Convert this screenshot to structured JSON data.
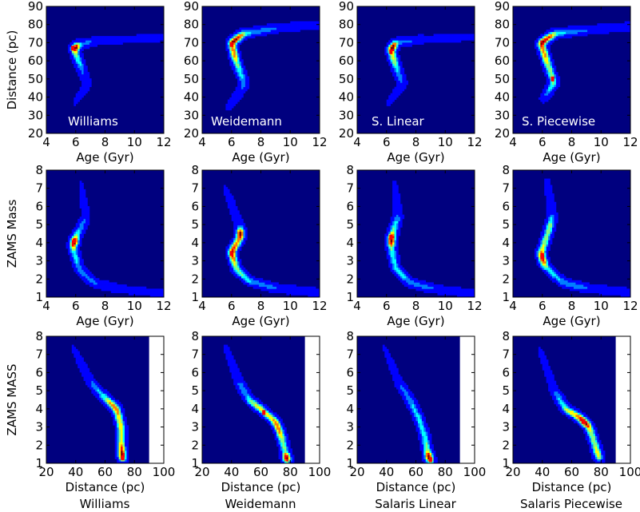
{
  "colors": {
    "background": "#00007f",
    "colormap": [
      "#00007f",
      "#0000ff",
      "#007fff",
      "#00ffff",
      "#7fff7f",
      "#ffff00",
      "#ff7f00",
      "#ff0000",
      "#7f0000"
    ]
  },
  "columns": [
    {
      "inner_label": "Williams",
      "caption": "Williams"
    },
    {
      "inner_label": "Weidemann",
      "caption": "Weidemann"
    },
    {
      "inner_label": "S. Linear",
      "caption": "Salaris Linear"
    },
    {
      "inner_label": "S. Piecewise",
      "caption": "Salaris Piecewise"
    }
  ],
  "rows": [
    {
      "ylabel": "Distance (pc)",
      "xlabel": "Age (Gyr)",
      "xticks": [
        "4",
        "6",
        "8",
        "10",
        "12"
      ],
      "yticks": [
        "20",
        "30",
        "40",
        "50",
        "60",
        "70",
        "80",
        "90"
      ]
    },
    {
      "ylabel": "ZAMS Mass",
      "xlabel": "Age (Gyr)",
      "xticks": [
        "4",
        "6",
        "8",
        "10",
        "12"
      ],
      "yticks": [
        "1",
        "2",
        "3",
        "4",
        "5",
        "6",
        "7",
        "8"
      ]
    },
    {
      "ylabel": "ZAMS MASS",
      "xlabel": "Distance (pc)",
      "xticks": [
        "20",
        "40",
        "60",
        "80",
        "100"
      ],
      "yticks": [
        "1",
        "2",
        "3",
        "4",
        "5",
        "6",
        "7",
        "8"
      ]
    }
  ],
  "chart_data": [
    {
      "type": "heatmap",
      "row": 0,
      "column": 0,
      "title": "Williams",
      "xlabel": "Age (Gyr)",
      "ylabel": "Distance (pc)",
      "xlim": [
        4,
        12
      ],
      "ylim": [
        20,
        90
      ],
      "density_ridge": [
        {
          "x": 5.8,
          "y": 35,
          "w": 0.05
        },
        {
          "x": 6.8,
          "y": 47,
          "w": 0.3
        },
        {
          "x": 6.3,
          "y": 58,
          "w": 0.7
        },
        {
          "x": 5.9,
          "y": 66,
          "w": 1.0
        },
        {
          "x": 6.1,
          "y": 69,
          "w": 0.7
        },
        {
          "x": 7.5,
          "y": 71,
          "w": 0.35
        },
        {
          "x": 10,
          "y": 72,
          "w": 0.3
        },
        {
          "x": 12,
          "y": 73,
          "w": 0.25
        }
      ],
      "peak": {
        "x": 5.8,
        "y": 67
      }
    },
    {
      "type": "heatmap",
      "row": 0,
      "column": 1,
      "title": "Weidemann",
      "xlabel": "Age (Gyr)",
      "ylabel": "Distance (pc)",
      "xlim": [
        4,
        12
      ],
      "ylim": [
        20,
        90
      ],
      "density_ridge": [
        {
          "x": 5.7,
          "y": 33,
          "w": 0.05
        },
        {
          "x": 6.9,
          "y": 47,
          "w": 0.3
        },
        {
          "x": 6.3,
          "y": 60,
          "w": 0.6
        },
        {
          "x": 6.0,
          "y": 70,
          "w": 0.7
        },
        {
          "x": 6.8,
          "y": 75,
          "w": 0.5
        },
        {
          "x": 9,
          "y": 78,
          "w": 0.3
        },
        {
          "x": 12,
          "y": 80,
          "w": 0.25
        }
      ],
      "peak": {
        "x": 6.0,
        "y": 69
      }
    },
    {
      "type": "heatmap",
      "row": 0,
      "column": 2,
      "title": "S. Linear",
      "xlabel": "Age (Gyr)",
      "ylabel": "Distance (pc)",
      "xlim": [
        4,
        12
      ],
      "ylim": [
        20,
        90
      ],
      "density_ridge": [
        {
          "x": 6.0,
          "y": 35,
          "w": 0.05
        },
        {
          "x": 7.1,
          "y": 47,
          "w": 0.3
        },
        {
          "x": 6.6,
          "y": 58,
          "w": 0.7
        },
        {
          "x": 6.3,
          "y": 66,
          "w": 0.9
        },
        {
          "x": 6.6,
          "y": 70,
          "w": 0.6
        },
        {
          "x": 8.5,
          "y": 72,
          "w": 0.3
        },
        {
          "x": 12,
          "y": 73,
          "w": 0.25
        }
      ],
      "peak": {
        "x": 6.3,
        "y": 65
      }
    },
    {
      "type": "heatmap",
      "row": 0,
      "column": 3,
      "title": "S. Piecewise",
      "xlabel": "Age (Gyr)",
      "ylabel": "Distance (pc)",
      "xlim": [
        4,
        12
      ],
      "ylim": [
        20,
        90
      ],
      "density_ridge": [
        {
          "x": 6.0,
          "y": 38,
          "w": 0.05
        },
        {
          "x": 6.8,
          "y": 48,
          "w": 0.5
        },
        {
          "x": 6.3,
          "y": 60,
          "w": 0.6
        },
        {
          "x": 5.9,
          "y": 70,
          "w": 0.7
        },
        {
          "x": 6.8,
          "y": 75,
          "w": 0.5
        },
        {
          "x": 9,
          "y": 77,
          "w": 0.3
        },
        {
          "x": 12,
          "y": 79,
          "w": 0.25
        }
      ],
      "peak": {
        "x": 6.7,
        "y": 50
      }
    },
    {
      "type": "heatmap",
      "row": 1,
      "column": 0,
      "xlabel": "Age (Gyr)",
      "ylabel": "ZAMS Mass",
      "xlim": [
        4,
        12
      ],
      "ylim": [
        1,
        8
      ],
      "density_ridge": [
        {
          "x": 6.3,
          "y": 7.6,
          "w": 0.05
        },
        {
          "x": 6.7,
          "y": 5.4,
          "w": 0.3
        },
        {
          "x": 6.0,
          "y": 4.3,
          "w": 0.8
        },
        {
          "x": 5.8,
          "y": 3.8,
          "w": 0.9
        },
        {
          "x": 6.2,
          "y": 2.6,
          "w": 0.5
        },
        {
          "x": 7.2,
          "y": 1.8,
          "w": 0.4
        },
        {
          "x": 9.0,
          "y": 1.45,
          "w": 0.35
        },
        {
          "x": 12,
          "y": 1.2,
          "w": 0.3
        }
      ],
      "peak": {
        "x": 5.9,
        "y": 4.1
      }
    },
    {
      "type": "heatmap",
      "row": 1,
      "column": 1,
      "xlabel": "Age (Gyr)",
      "ylabel": "ZAMS Mass",
      "xlim": [
        4,
        12
      ],
      "ylim": [
        1,
        8
      ],
      "density_ridge": [
        {
          "x": 5.5,
          "y": 7.2,
          "w": 0.05
        },
        {
          "x": 6.6,
          "y": 4.8,
          "w": 0.4
        },
        {
          "x": 6.6,
          "y": 4.3,
          "w": 0.6
        },
        {
          "x": 6.0,
          "y": 3.5,
          "w": 0.9
        },
        {
          "x": 6.3,
          "y": 2.6,
          "w": 0.5
        },
        {
          "x": 7.2,
          "y": 1.9,
          "w": 0.4
        },
        {
          "x": 9.0,
          "y": 1.5,
          "w": 0.35
        },
        {
          "x": 12,
          "y": 1.25,
          "w": 0.3
        }
      ],
      "peak": {
        "x": 6.0,
        "y": 3.4
      }
    },
    {
      "type": "heatmap",
      "row": 1,
      "column": 2,
      "xlabel": "Age (Gyr)",
      "ylabel": "ZAMS Mass",
      "xlim": [
        4,
        12
      ],
      "ylim": [
        1,
        8
      ],
      "density_ridge": [
        {
          "x": 6.5,
          "y": 7.5,
          "w": 0.05
        },
        {
          "x": 6.8,
          "y": 5.5,
          "w": 0.3
        },
        {
          "x": 6.4,
          "y": 4.5,
          "w": 0.7
        },
        {
          "x": 6.3,
          "y": 3.9,
          "w": 0.8
        },
        {
          "x": 6.6,
          "y": 2.6,
          "w": 0.5
        },
        {
          "x": 7.6,
          "y": 1.8,
          "w": 0.4
        },
        {
          "x": 9.2,
          "y": 1.45,
          "w": 0.35
        },
        {
          "x": 12,
          "y": 1.2,
          "w": 0.3
        }
      ],
      "peak": {
        "x": 6.3,
        "y": 4.3
      }
    },
    {
      "type": "heatmap",
      "row": 1,
      "column": 3,
      "xlabel": "Age (Gyr)",
      "ylabel": "ZAMS Mass",
      "xlim": [
        4,
        12
      ],
      "ylim": [
        1,
        8
      ],
      "density_ridge": [
        {
          "x": 6.3,
          "y": 7.6,
          "w": 0.05
        },
        {
          "x": 6.7,
          "y": 5.5,
          "w": 0.3
        },
        {
          "x": 6.4,
          "y": 4.6,
          "w": 0.6
        },
        {
          "x": 5.9,
          "y": 3.4,
          "w": 0.9
        },
        {
          "x": 6.2,
          "y": 2.7,
          "w": 0.5
        },
        {
          "x": 7.4,
          "y": 1.8,
          "w": 0.4
        },
        {
          "x": 9.0,
          "y": 1.5,
          "w": 0.35
        },
        {
          "x": 12,
          "y": 1.25,
          "w": 0.3
        }
      ],
      "peak": {
        "x": 6.0,
        "y": 3.3
      }
    },
    {
      "type": "heatmap",
      "row": 2,
      "column": 0,
      "xlabel": "Distance (pc)",
      "ylabel": "ZAMS MASS",
      "xlim": [
        20,
        100
      ],
      "ylim": [
        1,
        8
      ],
      "plot_region_xmax": 90,
      "density_ridge": [
        {
          "x": 37,
          "y": 7.6,
          "w": 0.05
        },
        {
          "x": 50,
          "y": 5.5,
          "w": 0.3
        },
        {
          "x": 60,
          "y": 4.6,
          "w": 0.5
        },
        {
          "x": 68,
          "y": 4.0,
          "w": 0.8
        },
        {
          "x": 71,
          "y": 3.0,
          "w": 0.7
        },
        {
          "x": 71,
          "y": 2.0,
          "w": 0.7
        },
        {
          "x": 72,
          "y": 1.2,
          "w": 1.0
        }
      ],
      "peak": {
        "x": 72,
        "y": 1.3
      }
    },
    {
      "type": "heatmap",
      "row": 2,
      "column": 1,
      "xlabel": "Distance (pc)",
      "ylabel": "ZAMS MASS",
      "xlim": [
        20,
        100
      ],
      "ylim": [
        1,
        8
      ],
      "plot_region_xmax": 90,
      "density_ridge": [
        {
          "x": 35,
          "y": 7.6,
          "w": 0.05
        },
        {
          "x": 45,
          "y": 5.5,
          "w": 0.3
        },
        {
          "x": 52,
          "y": 4.5,
          "w": 0.4
        },
        {
          "x": 60,
          "y": 4.0,
          "w": 0.6
        },
        {
          "x": 70,
          "y": 3.3,
          "w": 0.8
        },
        {
          "x": 74,
          "y": 2.5,
          "w": 0.6
        },
        {
          "x": 77,
          "y": 1.5,
          "w": 0.5
        },
        {
          "x": 78,
          "y": 1.1,
          "w": 0.5
        }
      ],
      "peak": {
        "x": 62,
        "y": 3.8
      }
    },
    {
      "type": "heatmap",
      "row": 2,
      "column": 2,
      "xlabel": "Distance (pc)",
      "ylabel": "ZAMS MASS",
      "xlim": [
        20,
        100
      ],
      "ylim": [
        1,
        8
      ],
      "plot_region_xmax": 90,
      "density_ridge": [
        {
          "x": 37,
          "y": 7.7,
          "w": 0.05
        },
        {
          "x": 48,
          "y": 5.5,
          "w": 0.3
        },
        {
          "x": 56,
          "y": 4.5,
          "w": 0.5
        },
        {
          "x": 62,
          "y": 3.5,
          "w": 0.6
        },
        {
          "x": 66,
          "y": 2.5,
          "w": 0.6
        },
        {
          "x": 68,
          "y": 1.6,
          "w": 0.7
        },
        {
          "x": 70,
          "y": 1.1,
          "w": 1.0
        }
      ],
      "peak": {
        "x": 70,
        "y": 1.2
      }
    },
    {
      "type": "heatmap",
      "row": 2,
      "column": 3,
      "xlabel": "Distance (pc)",
      "ylabel": "ZAMS MASS",
      "xlim": [
        20,
        100
      ],
      "ylim": [
        1,
        8
      ],
      "plot_region_xmax": 90,
      "density_ridge": [
        {
          "x": 37,
          "y": 7.6,
          "w": 0.05
        },
        {
          "x": 48,
          "y": 5.0,
          "w": 0.3
        },
        {
          "x": 56,
          "y": 4.0,
          "w": 0.6
        },
        {
          "x": 66,
          "y": 3.5,
          "w": 0.8
        },
        {
          "x": 72,
          "y": 3.0,
          "w": 0.7
        },
        {
          "x": 76,
          "y": 2.0,
          "w": 0.6
        },
        {
          "x": 79,
          "y": 1.2,
          "w": 0.6
        }
      ],
      "peak": {
        "x": 68,
        "y": 3.3
      }
    }
  ]
}
